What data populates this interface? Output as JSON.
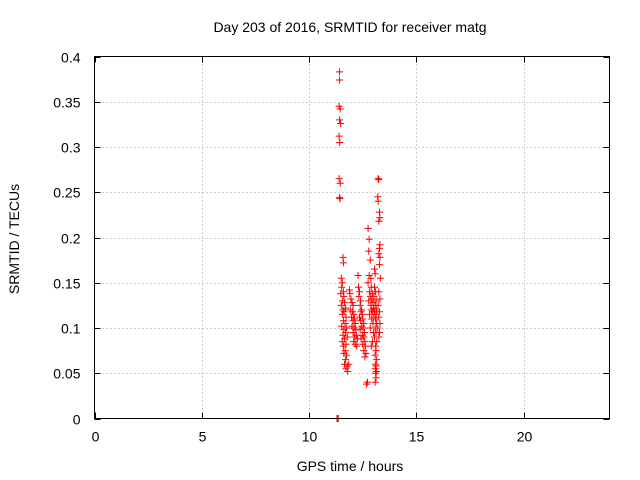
{
  "chart_data": {
    "type": "scatter",
    "title": "Day 203 of 2016, SRMTID for receiver matg",
    "xlabel": "GPS time / hours",
    "ylabel": "SRMTID / TECUs",
    "xlim": [
      0,
      24
    ],
    "ylim": [
      0,
      0.4
    ],
    "xticks": [
      0,
      5,
      10,
      15,
      20
    ],
    "yticks": [
      0,
      0.05,
      0.1,
      0.15,
      0.2,
      0.25,
      0.3,
      0.35,
      0.4
    ],
    "xtick_labels": [
      "0",
      "5",
      "10",
      "15",
      "20"
    ],
    "ytick_labels": [
      "0",
      "0.05",
      "0.1",
      "0.15",
      "0.2",
      "0.25",
      "0.3",
      "0.35",
      "0.4"
    ],
    "grid": true,
    "marker": "+",
    "color": "#ff0000",
    "series": [
      {
        "name": "SRMTID",
        "points": [
          [
            11.3,
            0.0
          ],
          [
            11.32,
            0.0
          ],
          [
            11.34,
            0.0
          ],
          [
            11.36,
            0.0
          ],
          [
            11.42,
            0.383
          ],
          [
            11.42,
            0.374
          ],
          [
            11.4,
            0.345
          ],
          [
            11.45,
            0.342
          ],
          [
            11.42,
            0.33
          ],
          [
            11.47,
            0.326
          ],
          [
            11.4,
            0.312
          ],
          [
            11.43,
            0.305
          ],
          [
            11.4,
            0.265
          ],
          [
            11.45,
            0.26
          ],
          [
            11.42,
            0.244
          ],
          [
            11.44,
            0.243
          ],
          [
            11.58,
            0.178
          ],
          [
            11.6,
            0.172
          ],
          [
            11.5,
            0.155
          ],
          [
            11.55,
            0.15
          ],
          [
            11.52,
            0.145
          ],
          [
            11.6,
            0.14
          ],
          [
            11.48,
            0.138
          ],
          [
            11.62,
            0.135
          ],
          [
            11.55,
            0.13
          ],
          [
            11.65,
            0.128
          ],
          [
            11.5,
            0.125
          ],
          [
            11.7,
            0.122
          ],
          [
            11.58,
            0.12
          ],
          [
            11.63,
            0.118
          ],
          [
            11.55,
            0.115
          ],
          [
            11.72,
            0.112
          ],
          [
            11.6,
            0.108
          ],
          [
            11.68,
            0.105
          ],
          [
            11.52,
            0.102
          ],
          [
            11.75,
            0.1
          ],
          [
            11.62,
            0.098
          ],
          [
            11.7,
            0.095
          ],
          [
            11.58,
            0.092
          ],
          [
            11.78,
            0.09
          ],
          [
            11.65,
            0.088
          ],
          [
            11.55,
            0.085
          ],
          [
            11.72,
            0.082
          ],
          [
            11.6,
            0.08
          ],
          [
            11.68,
            0.075
          ],
          [
            11.62,
            0.072
          ],
          [
            11.75,
            0.07
          ],
          [
            11.7,
            0.065
          ],
          [
            11.65,
            0.06
          ],
          [
            11.78,
            0.058
          ],
          [
            11.72,
            0.055
          ],
          [
            11.8,
            0.052
          ],
          [
            11.85,
            0.06
          ],
          [
            11.88,
            0.142
          ],
          [
            11.9,
            0.138
          ],
          [
            11.95,
            0.132
          ],
          [
            12.0,
            0.128
          ],
          [
            12.05,
            0.125
          ],
          [
            11.92,
            0.12
          ],
          [
            12.02,
            0.118
          ],
          [
            12.08,
            0.115
          ],
          [
            11.98,
            0.112
          ],
          [
            12.12,
            0.11
          ],
          [
            12.05,
            0.108
          ],
          [
            12.15,
            0.105
          ],
          [
            12.0,
            0.102
          ],
          [
            12.1,
            0.1
          ],
          [
            12.18,
            0.098
          ],
          [
            12.05,
            0.095
          ],
          [
            12.2,
            0.092
          ],
          [
            12.12,
            0.09
          ],
          [
            12.25,
            0.088
          ],
          [
            12.08,
            0.085
          ],
          [
            12.15,
            0.082
          ],
          [
            12.22,
            0.08
          ],
          [
            12.28,
            0.158
          ],
          [
            12.3,
            0.145
          ],
          [
            12.35,
            0.14
          ],
          [
            12.32,
            0.135
          ],
          [
            12.4,
            0.13
          ],
          [
            12.38,
            0.125
          ],
          [
            12.45,
            0.12
          ],
          [
            12.42,
            0.118
          ],
          [
            12.48,
            0.115
          ],
          [
            12.35,
            0.112
          ],
          [
            12.5,
            0.11
          ],
          [
            12.4,
            0.108
          ],
          [
            12.55,
            0.105
          ],
          [
            12.45,
            0.102
          ],
          [
            12.52,
            0.1
          ],
          [
            12.38,
            0.098
          ],
          [
            12.58,
            0.095
          ],
          [
            12.48,
            0.092
          ],
          [
            12.55,
            0.09
          ],
          [
            12.42,
            0.088
          ],
          [
            12.6,
            0.085
          ],
          [
            12.5,
            0.082
          ],
          [
            12.62,
            0.08
          ],
          [
            12.55,
            0.075
          ],
          [
            12.65,
            0.072
          ],
          [
            12.6,
            0.068
          ],
          [
            12.68,
            0.038
          ],
          [
            12.72,
            0.04
          ],
          [
            12.75,
            0.21
          ],
          [
            12.8,
            0.198
          ],
          [
            12.78,
            0.185
          ],
          [
            12.85,
            0.175
          ],
          [
            12.8,
            0.158
          ],
          [
            12.88,
            0.155
          ],
          [
            12.75,
            0.15
          ],
          [
            12.9,
            0.145
          ],
          [
            12.82,
            0.14
          ],
          [
            12.95,
            0.138
          ],
          [
            12.85,
            0.135
          ],
          [
            12.92,
            0.132
          ],
          [
            12.78,
            0.13
          ],
          [
            12.98,
            0.128
          ],
          [
            12.88,
            0.125
          ],
          [
            13.0,
            0.122
          ],
          [
            12.9,
            0.12
          ],
          [
            12.95,
            0.118
          ],
          [
            12.82,
            0.115
          ],
          [
            13.02,
            0.112
          ],
          [
            12.92,
            0.11
          ],
          [
            12.98,
            0.105
          ],
          [
            12.85,
            0.1
          ],
          [
            13.0,
            0.095
          ],
          [
            12.95,
            0.085
          ],
          [
            12.9,
            0.08
          ],
          [
            13.05,
            0.165
          ],
          [
            13.08,
            0.16
          ],
          [
            13.05,
            0.145
          ],
          [
            13.1,
            0.14
          ],
          [
            13.02,
            0.135
          ],
          [
            13.12,
            0.13
          ],
          [
            13.08,
            0.125
          ],
          [
            13.15,
            0.12
          ],
          [
            13.05,
            0.118
          ],
          [
            13.12,
            0.115
          ],
          [
            13.1,
            0.11
          ],
          [
            13.15,
            0.105
          ],
          [
            13.08,
            0.1
          ],
          [
            13.12,
            0.095
          ],
          [
            13.05,
            0.09
          ],
          [
            13.15,
            0.085
          ],
          [
            13.1,
            0.08
          ],
          [
            13.12,
            0.075
          ],
          [
            13.08,
            0.07
          ],
          [
            13.15,
            0.065
          ],
          [
            13.1,
            0.06
          ],
          [
            13.12,
            0.058
          ],
          [
            13.08,
            0.055
          ],
          [
            13.14,
            0.052
          ],
          [
            13.1,
            0.05
          ],
          [
            13.12,
            0.045
          ],
          [
            13.08,
            0.04
          ],
          [
            13.22,
            0.265
          ],
          [
            13.25,
            0.264
          ],
          [
            13.2,
            0.245
          ],
          [
            13.22,
            0.24
          ],
          [
            13.28,
            0.228
          ],
          [
            13.3,
            0.222
          ],
          [
            13.25,
            0.218
          ],
          [
            13.3,
            0.192
          ],
          [
            13.28,
            0.188
          ],
          [
            13.25,
            0.182
          ],
          [
            13.3,
            0.178
          ],
          [
            13.28,
            0.17
          ],
          [
            13.32,
            0.155
          ],
          [
            13.25,
            0.14
          ],
          [
            13.3,
            0.132
          ],
          [
            13.22,
            0.125
          ],
          [
            13.28,
            0.118
          ],
          [
            13.25,
            0.112
          ],
          [
            13.3,
            0.105
          ],
          [
            13.2,
            0.1
          ],
          [
            13.28,
            0.095
          ],
          [
            13.25,
            0.09
          ]
        ]
      }
    ]
  }
}
